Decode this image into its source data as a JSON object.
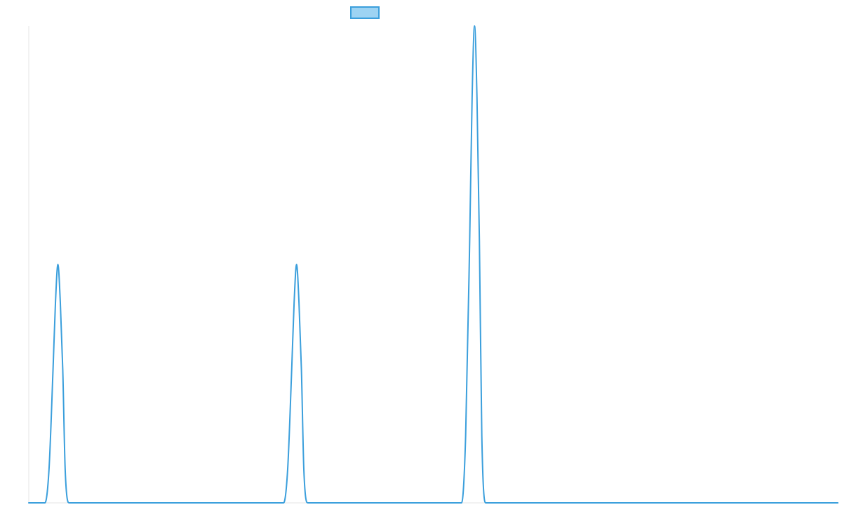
{
  "colors": {
    "series_stroke": "#3b9fdc",
    "series_fill": "#9dd3f3"
  },
  "chart_data": {
    "type": "line",
    "title": "",
    "xlabel": "",
    "ylabel": "",
    "xlim": [
      0,
      1000
    ],
    "ylim": [
      0,
      100
    ],
    "grid": false,
    "legend": "top-center",
    "series": [
      {
        "name": "",
        "x": [
          0,
          20,
          25,
          30,
          33,
          36,
          39,
          42,
          45,
          50,
          55,
          60,
          65,
          70,
          300,
          315,
          320,
          325,
          328,
          331,
          334,
          337,
          340,
          345,
          350,
          355,
          360,
          365,
          530,
          535,
          540,
          545,
          548,
          551,
          554,
          557,
          560,
          565,
          570,
          575,
          580,
          1000
        ],
        "y": [
          0,
          0,
          7,
          28,
          42,
          50,
          42,
          28,
          7,
          0,
          0,
          0,
          0,
          0,
          0,
          0,
          7,
          28,
          42,
          50,
          42,
          28,
          7,
          0,
          0,
          0,
          0,
          0,
          0,
          0,
          14,
          55,
          85,
          100,
          85,
          55,
          14,
          0,
          0,
          0,
          0,
          0
        ]
      }
    ]
  }
}
